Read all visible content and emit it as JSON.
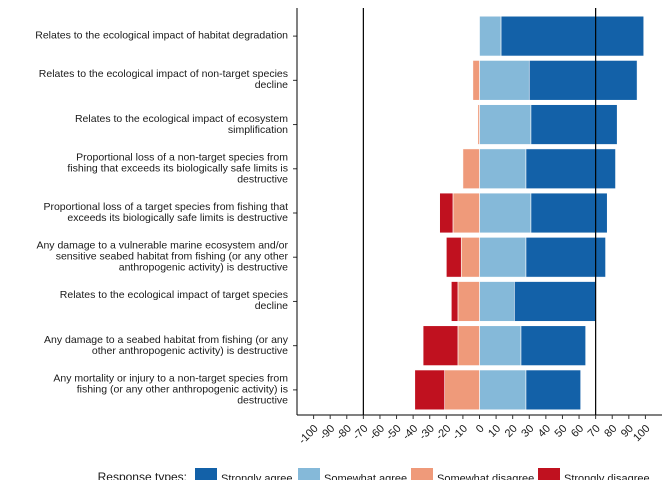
{
  "chart_data": {
    "type": "diverging_bar",
    "categories": [
      "Relates to the ecological impact of habitat degradation",
      "Relates to the ecological impact of non-target species\ndecline",
      "Relates to the ecological impact of ecosystem\nsimplification",
      "Proportional loss of a non-target species from\nfishing that exceeds its biologically safe limits is\ndestructive",
      "Proportional loss of a target species from fishing that\nexceeds its biologically safe limits is destructive",
      "Any damage to a vulnerable marine ecosystem and/or\nsensitive seabed habitat from fishing (or any other\nanthropogenic activity) is destructive",
      "Relates to the ecological impact of target species\ndecline",
      "Any damage to a seabed habitat from fishing (or any\nother anthropogenic activity) is destructive",
      "Any mortality or injury to a non-target species from\nfishing (or any other anthropogenic activity) is\ndestructive"
    ],
    "series": [
      {
        "name": "Strongly agree",
        "color": "#1361a8",
        "values": [
          86,
          65,
          52,
          54,
          46,
          48,
          49,
          39,
          33
        ]
      },
      {
        "name": "Somewhat agree",
        "color": "#85b9d9",
        "values": [
          13,
          30,
          31,
          28,
          31,
          28,
          21,
          25,
          28
        ]
      },
      {
        "name": "Somewhat disagree",
        "color": "#ef9a7a",
        "values": [
          0,
          -4,
          -1,
          -10,
          -16,
          -11,
          -13,
          -13,
          -21
        ]
      },
      {
        "name": "Strongly disagree",
        "color": "#c0111f",
        "values": [
          0,
          0,
          0,
          0,
          -8,
          -9,
          -4,
          -21,
          -18
        ]
      }
    ],
    "legend_title": "Response types:",
    "legend_position": "bottom",
    "xlim": [
      -110,
      110
    ],
    "xticks": [
      -100,
      -90,
      -80,
      -70,
      -60,
      -50,
      -40,
      -30,
      -20,
      -10,
      0,
      10,
      20,
      30,
      40,
      50,
      60,
      70,
      80,
      90,
      100
    ],
    "reference_lines": [
      -70,
      70
    ]
  }
}
